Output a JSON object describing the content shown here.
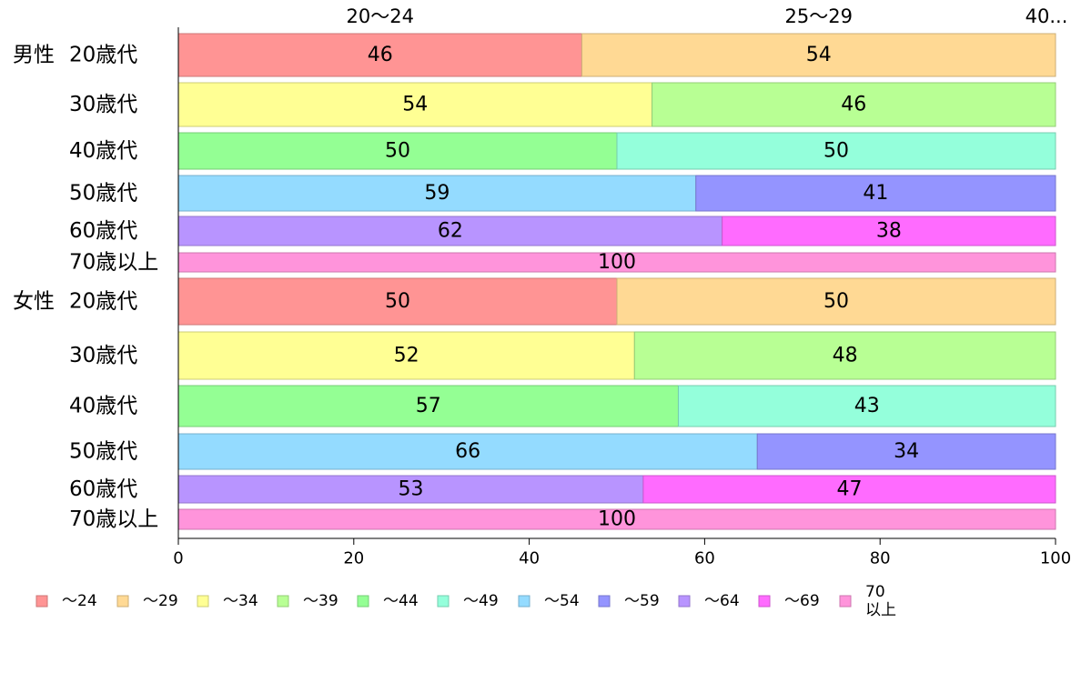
{
  "chart_data": {
    "type": "bar",
    "orientation": "horizontal",
    "stacked": true,
    "groups": [
      {
        "label": "男性",
        "rows": [
          {
            "label": "20歳代",
            "segments": [
              {
                "series": "～24",
                "value": 46
              },
              {
                "series": "～29",
                "value": 54
              }
            ]
          },
          {
            "label": "30歳代",
            "segments": [
              {
                "series": "～34",
                "value": 54
              },
              {
                "series": "～39",
                "value": 46
              }
            ]
          },
          {
            "label": "40歳代",
            "segments": [
              {
                "series": "～44",
                "value": 50
              },
              {
                "series": "～49",
                "value": 50
              }
            ]
          },
          {
            "label": "50歳代",
            "segments": [
              {
                "series": "～54",
                "value": 59
              },
              {
                "series": "～59",
                "value": 41
              }
            ]
          },
          {
            "label": "60歳代",
            "segments": [
              {
                "series": "～64",
                "value": 62
              },
              {
                "series": "～69",
                "value": 38
              }
            ]
          },
          {
            "label": "70歳以上",
            "segments": [
              {
                "series": "70以上",
                "value": 100
              }
            ]
          }
        ]
      },
      {
        "label": "女性",
        "rows": [
          {
            "label": "20歳代",
            "segments": [
              {
                "series": "～24",
                "value": 50
              },
              {
                "series": "～29",
                "value": 50
              }
            ]
          },
          {
            "label": "30歳代",
            "segments": [
              {
                "series": "～34",
                "value": 52
              },
              {
                "series": "～39",
                "value": 48
              }
            ]
          },
          {
            "label": "40歳代",
            "segments": [
              {
                "series": "～44",
                "value": 57
              },
              {
                "series": "～49",
                "value": 43
              }
            ]
          },
          {
            "label": "50歳代",
            "segments": [
              {
                "series": "～54",
                "value": 66
              },
              {
                "series": "～59",
                "value": 34
              }
            ]
          },
          {
            "label": "60歳代",
            "segments": [
              {
                "series": "～64",
                "value": 53
              },
              {
                "series": "～69",
                "value": 47
              }
            ]
          },
          {
            "label": "70歳以上",
            "segments": [
              {
                "series": "70以上",
                "value": 100
              }
            ]
          }
        ]
      }
    ],
    "top_labels": [
      "20～24",
      "25～29",
      "40..."
    ],
    "series": [
      {
        "name": "～24",
        "color": "#ff9494"
      },
      {
        "name": "～29",
        "color": "#ffd994"
      },
      {
        "name": "～34",
        "color": "#ffff94"
      },
      {
        "name": "～39",
        "color": "#b8ff94"
      },
      {
        "name": "～44",
        "color": "#94ff94"
      },
      {
        "name": "～49",
        "color": "#94ffdb"
      },
      {
        "name": "～54",
        "color": "#94dbff"
      },
      {
        "name": "～59",
        "color": "#9494ff"
      },
      {
        "name": "～64",
        "color": "#b894ff"
      },
      {
        "name": "～69",
        "color": "#ff6bff"
      },
      {
        "name": "70\n以上",
        "color": "#ff94db"
      }
    ],
    "xlim": [
      0,
      100
    ],
    "xticks": [
      0,
      20,
      40,
      60,
      80,
      100
    ],
    "grid": false,
    "legend_position": "bottom"
  }
}
